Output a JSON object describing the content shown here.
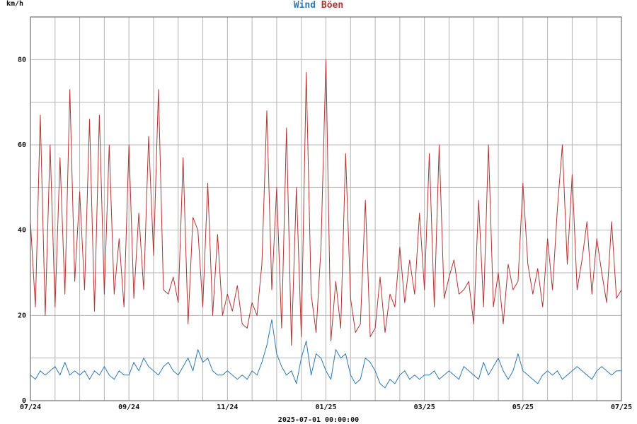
{
  "chart_data": {
    "type": "line",
    "title_parts": [
      "Wind",
      "Böen"
    ],
    "ylabel": "km/h",
    "xlabel": "2025-07-01 00:00:00",
    "ylim": [
      0,
      90
    ],
    "yticks": [
      0,
      20,
      40,
      60,
      80
    ],
    "xlim": [
      0,
      12
    ],
    "xticks": [
      {
        "x": 0,
        "label": "07/24"
      },
      {
        "x": 2,
        "label": "09/24"
      },
      {
        "x": 4,
        "label": "11/24"
      },
      {
        "x": 6,
        "label": "01/25"
      },
      {
        "x": 8,
        "label": "03/25"
      },
      {
        "x": 10,
        "label": "05/25"
      },
      {
        "x": 12,
        "label": "07/25"
      }
    ],
    "grid": true,
    "colors": {
      "wind": "#2f78b0",
      "gust": "#b23434",
      "grid": "#b4b4b4",
      "axis": "#555555"
    },
    "series": [
      {
        "name": "Wind",
        "color": "#2f78b0",
        "x": [
          0,
          0.1,
          0.2,
          0.3,
          0.4,
          0.5,
          0.6,
          0.7,
          0.8,
          0.9,
          1.0,
          1.1,
          1.2,
          1.3,
          1.4,
          1.5,
          1.6,
          1.7,
          1.8,
          1.9,
          2.0,
          2.1,
          2.2,
          2.3,
          2.4,
          2.5,
          2.6,
          2.7,
          2.8,
          2.9,
          3.0,
          3.1,
          3.2,
          3.3,
          3.4,
          3.5,
          3.6,
          3.7,
          3.8,
          3.9,
          4.0,
          4.1,
          4.2,
          4.3,
          4.4,
          4.5,
          4.6,
          4.7,
          4.8,
          4.9,
          5.0,
          5.1,
          5.2,
          5.3,
          5.4,
          5.5,
          5.6,
          5.7,
          5.8,
          5.9,
          6.0,
          6.1,
          6.2,
          6.3,
          6.4,
          6.5,
          6.6,
          6.7,
          6.8,
          6.9,
          7.0,
          7.1,
          7.2,
          7.3,
          7.4,
          7.5,
          7.6,
          7.7,
          7.8,
          7.9,
          8.0,
          8.1,
          8.2,
          8.3,
          8.4,
          8.5,
          8.6,
          8.7,
          8.8,
          8.9,
          9.0,
          9.1,
          9.2,
          9.3,
          9.4,
          9.5,
          9.6,
          9.7,
          9.8,
          9.9,
          10.0,
          10.1,
          10.2,
          10.3,
          10.4,
          10.5,
          10.6,
          10.7,
          10.8,
          10.9,
          11.0,
          11.1,
          11.2,
          11.3,
          11.4,
          11.5,
          11.6,
          11.7,
          11.8,
          11.9,
          12.0
        ],
        "y": [
          6,
          5,
          7,
          6,
          7,
          8,
          6,
          9,
          6,
          7,
          6,
          7,
          5,
          7,
          6,
          8,
          6,
          5,
          7,
          6,
          6,
          9,
          7,
          10,
          8,
          7,
          6,
          8,
          9,
          7,
          6,
          8,
          10,
          7,
          12,
          9,
          10,
          7,
          6,
          6,
          7,
          6,
          5,
          6,
          5,
          7,
          6,
          9,
          13,
          19,
          11,
          8,
          6,
          7,
          4,
          10,
          14,
          6,
          11,
          10,
          7,
          5,
          12,
          10,
          11,
          6,
          4,
          5,
          10,
          9,
          7,
          4,
          3,
          5,
          4,
          6,
          7,
          5,
          6,
          5,
          6,
          6,
          7,
          5,
          6,
          7,
          6,
          5,
          8,
          7,
          6,
          5,
          9,
          6,
          8,
          10,
          7,
          5,
          7,
          11,
          7,
          6,
          5,
          4,
          6,
          7,
          6,
          7,
          5,
          6,
          7,
          8,
          7,
          6,
          5,
          7,
          8,
          7,
          6,
          7,
          7
        ]
      },
      {
        "name": "Böen",
        "color": "#b23434",
        "x": [
          0,
          0.1,
          0.2,
          0.3,
          0.4,
          0.5,
          0.6,
          0.7,
          0.8,
          0.9,
          1.0,
          1.1,
          1.2,
          1.3,
          1.4,
          1.5,
          1.6,
          1.7,
          1.8,
          1.9,
          2.0,
          2.1,
          2.2,
          2.3,
          2.4,
          2.5,
          2.6,
          2.7,
          2.8,
          2.9,
          3.0,
          3.1,
          3.2,
          3.3,
          3.4,
          3.5,
          3.6,
          3.7,
          3.8,
          3.9,
          4.0,
          4.1,
          4.2,
          4.3,
          4.4,
          4.5,
          4.6,
          4.7,
          4.8,
          4.9,
          5.0,
          5.1,
          5.2,
          5.3,
          5.4,
          5.5,
          5.6,
          5.7,
          5.8,
          5.9,
          6.0,
          6.1,
          6.2,
          6.3,
          6.4,
          6.5,
          6.6,
          6.7,
          6.8,
          6.9,
          7.0,
          7.1,
          7.2,
          7.3,
          7.4,
          7.5,
          7.6,
          7.7,
          7.8,
          7.9,
          8.0,
          8.1,
          8.2,
          8.3,
          8.4,
          8.5,
          8.6,
          8.7,
          8.8,
          8.9,
          9.0,
          9.1,
          9.2,
          9.3,
          9.4,
          9.5,
          9.6,
          9.7,
          9.8,
          9.9,
          10.0,
          10.1,
          10.2,
          10.3,
          10.4,
          10.5,
          10.6,
          10.7,
          10.8,
          10.9,
          11.0,
          11.1,
          11.2,
          11.3,
          11.4,
          11.5,
          11.6,
          11.7,
          11.8,
          11.9,
          12.0
        ],
        "y": [
          42,
          22,
          67,
          20,
          60,
          22,
          57,
          25,
          73,
          28,
          49,
          26,
          66,
          21,
          67,
          25,
          60,
          25,
          38,
          22,
          60,
          24,
          44,
          26,
          62,
          34,
          73,
          26,
          25,
          29,
          23,
          57,
          18,
          43,
          40,
          22,
          51,
          20,
          39,
          20,
          25,
          21,
          27,
          18,
          17,
          23,
          20,
          32,
          68,
          26,
          50,
          17,
          64,
          13,
          50,
          15,
          77,
          25,
          16,
          36,
          80,
          14,
          28,
          17,
          58,
          24,
          16,
          18,
          47,
          15,
          17,
          29,
          16,
          25,
          22,
          36,
          23,
          33,
          25,
          44,
          26,
          58,
          22,
          60,
          24,
          29,
          33,
          25,
          26,
          28,
          18,
          47,
          22,
          60,
          22,
          30,
          18,
          32,
          26,
          28,
          51,
          32,
          25,
          31,
          22,
          38,
          26,
          45,
          60,
          32,
          53,
          26,
          33,
          42,
          25,
          38,
          30,
          23,
          42,
          24,
          26
        ]
      }
    ]
  }
}
